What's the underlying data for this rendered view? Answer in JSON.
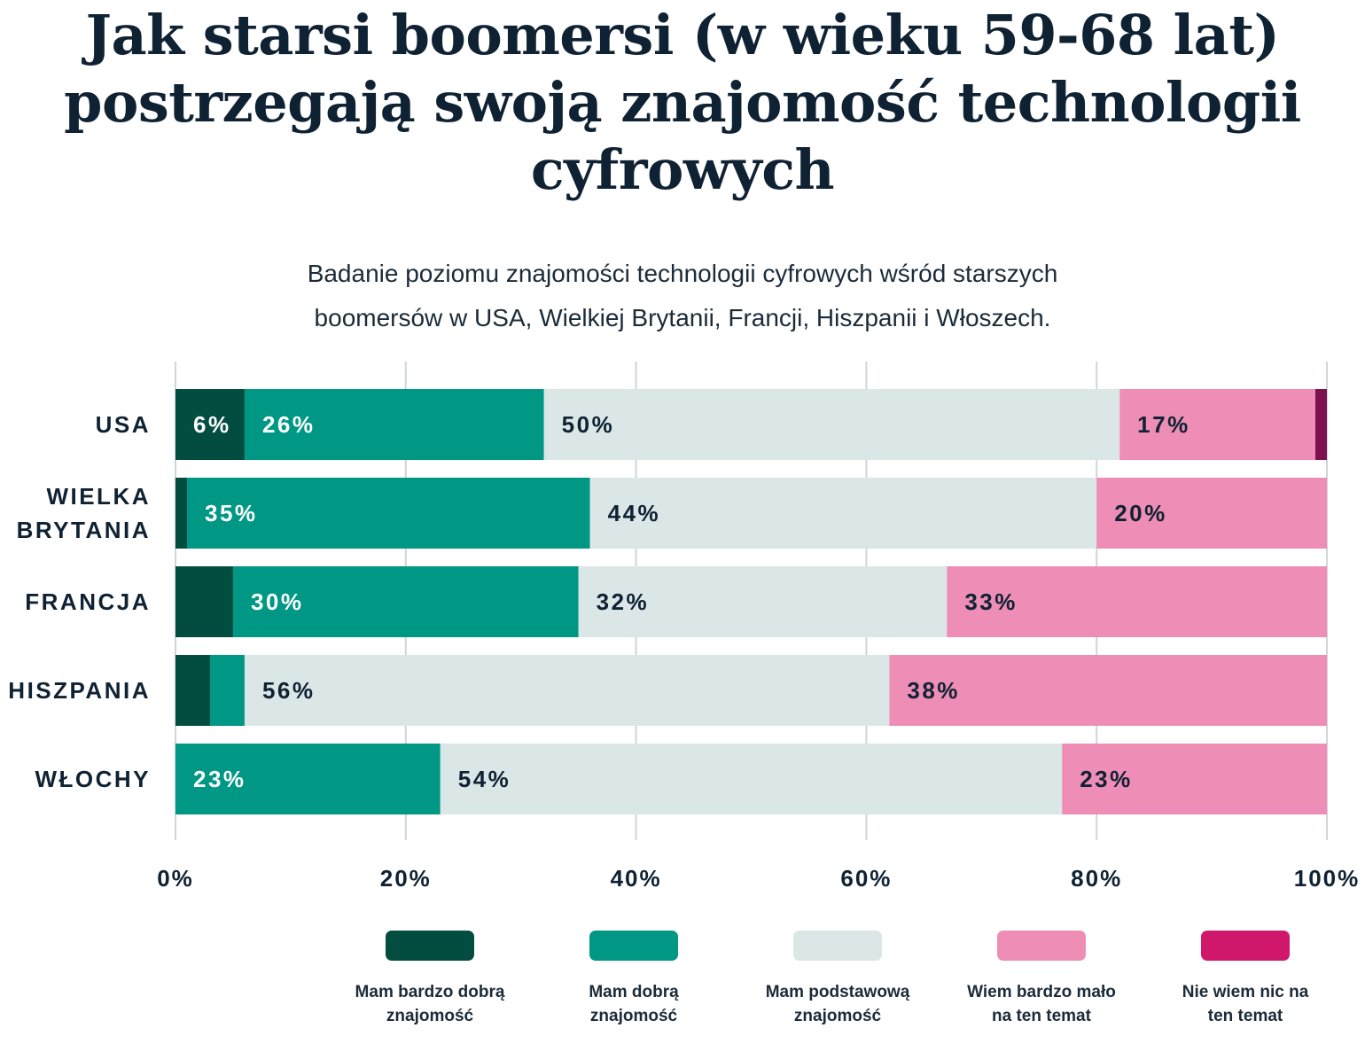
{
  "chart_data": {
    "type": "bar",
    "orientation": "horizontal",
    "stacked": true,
    "title_lines": [
      "Jak starsi boomersi (w wieku 59-68 lat)",
      "postrzegają swoją znajomość technologii",
      "cyfrowych"
    ],
    "subtitle_lines": [
      "Badanie poziomu znajomości technologii cyfrowych wśród starszych",
      "boomersów w USA, Wielkiej Brytanii, Francji, Hiszpanii i Włoszech."
    ],
    "categories": [
      {
        "label_lines": [
          "USA"
        ]
      },
      {
        "label_lines": [
          "WIELKA",
          "BRYTANIA"
        ]
      },
      {
        "label_lines": [
          "FRANCJA"
        ]
      },
      {
        "label_lines": [
          "HISZPANIA"
        ]
      },
      {
        "label_lines": [
          "WŁOCHY"
        ]
      }
    ],
    "series": [
      {
        "name_lines": [
          "Mam bardzo dobrą",
          "znajomość"
        ],
        "color": "#034d40",
        "label_color": "#ffffff",
        "values": [
          6,
          1,
          5,
          3,
          0
        ],
        "labels": [
          "6%",
          "",
          "",
          "",
          ""
        ]
      },
      {
        "name_lines": [
          "Mam dobrą",
          "znajomość"
        ],
        "color": "#009885",
        "label_color": "#ffffff",
        "values": [
          26,
          35,
          30,
          3,
          23
        ],
        "labels": [
          "26%",
          "35%",
          "30%",
          "",
          "23%"
        ]
      },
      {
        "name_lines": [
          "Mam podstawową",
          "znajomość"
        ],
        "color": "#dbe7e6",
        "label_color": "#0f2233",
        "values": [
          50,
          44,
          32,
          56,
          54
        ],
        "labels": [
          "50%",
          "44%",
          "32%",
          "56%",
          "54%"
        ]
      },
      {
        "name_lines": [
          "Wiem bardzo mało",
          "na ten temat"
        ],
        "color": "#ee8db6",
        "label_color": "#0f2233",
        "values": [
          17,
          20,
          33,
          38,
          23
        ],
        "labels": [
          "17%",
          "20%",
          "33%",
          "38%",
          "23%"
        ]
      },
      {
        "name_lines": [
          "Nie wiem nic na",
          "ten temat"
        ],
        "color": "#d0176b",
        "bar_color": "#7e1150",
        "label_color": "#ffffff",
        "values": [
          1,
          0,
          0,
          0,
          0
        ],
        "labels": [
          "",
          "",
          "",
          "",
          ""
        ]
      }
    ],
    "xlim": [
      0,
      100
    ],
    "xticks": [
      {
        "value": 0,
        "label": "0%"
      },
      {
        "value": 20,
        "label": "20%"
      },
      {
        "value": 40,
        "label": "40%"
      },
      {
        "value": 60,
        "label": "60%"
      },
      {
        "value": 80,
        "label": "80%"
      },
      {
        "value": 100,
        "label": "100%"
      }
    ],
    "grid": true,
    "legend_position": "bottom"
  }
}
